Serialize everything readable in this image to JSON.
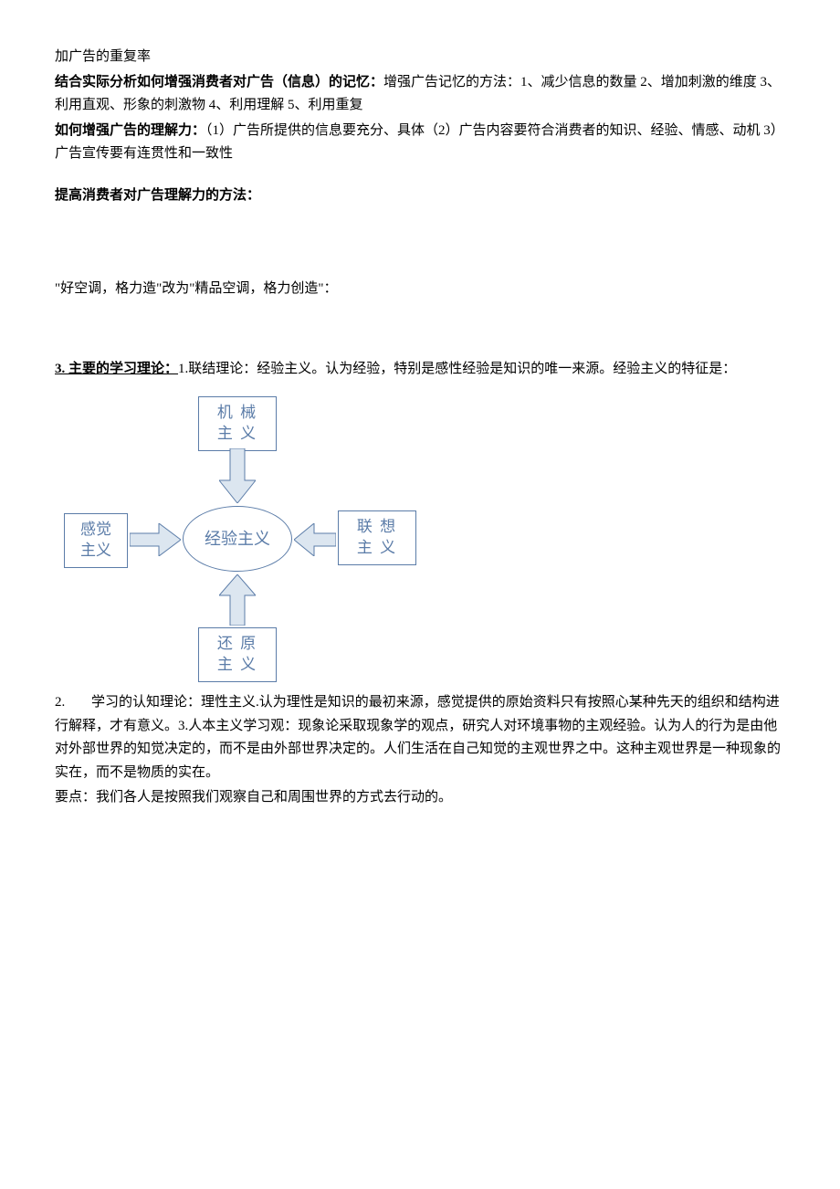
{
  "p1": "加广告的重复率",
  "p2_bold": "结合实际分析如何增强消费者对广告（信息）的记忆：",
  "p2_rest": "增强广告记忆的方法：1、减少信息的数量 2、增加刺激的维度 3、利用直观、形象的刺激物 4、利用理解 5、利用重复",
  "p3_bold": "如何增强广告的理解力：",
  "p3_rest": "（1）广告所提供的信息要充分、具体（2）广告内容要符合消费者的知识、经验、情感、动机 3）广告宣传要有连贯性和一致性",
  "p4_bold": "提高消费者对广告理解力的方法：",
  "p5": "\"好空调，格力造\"改为\"精品空调，格力创造\"：",
  "p6_bold": "3. 主要的学习理论：",
  "p6_rest": "1.联结理论：经验主义。认为经验，特别是感性经验是知识的唯一来源。经验主义的特征是：",
  "diagram": {
    "center": "经验主义",
    "top": "机 械\n主 义",
    "left": "感觉\n主义",
    "right": "联 想\n主 义",
    "bottom": "还 原\n主 义",
    "box_border": "#5b7ca8",
    "text_color": "#5b7ca8",
    "arrow_fill": "#dce6f0",
    "arrow_stroke": "#5b7ca8"
  },
  "p7_num": "2.",
  "p7_rest": "学习的认知理论：理性主义.认为理性是知识的最初来源，感觉提供的原始资料只有按照心某种先天的组织和结构进行解释，才有意义。3.人本主义学习观：现象论采取现象学的观点，研究人对环境事物的主观经验。认为人的行为是由他对外部世界的知觉决定的，而不是由外部世界决定的。人们生活在自己知觉的主观世界之中。这种主观世界是一种现象的实在，而不是物质的实在。",
  "p8": "要点：我们各人是按照我们观察自己和周围世界的方式去行动的。"
}
